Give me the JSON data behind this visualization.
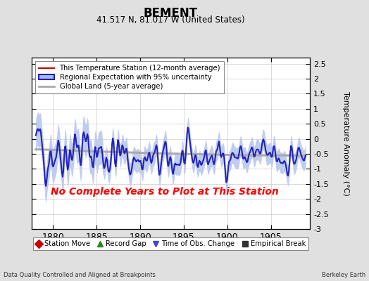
{
  "title": "BEMENT",
  "subtitle": "41.517 N, 81.017 W (United States)",
  "ylabel": "Temperature Anomaly (°C)",
  "xlabel_left": "Data Quality Controlled and Aligned at Breakpoints",
  "xlabel_right": "Berkeley Earth",
  "no_data_text": "No Complete Years to Plot at This Station",
  "xlim": [
    1877.5,
    1909.5
  ],
  "ylim": [
    -3.0,
    2.7
  ],
  "yticks": [
    -3,
    -2.5,
    -2,
    -1.5,
    -1,
    -0.5,
    0,
    0.5,
    1,
    1.5,
    2,
    2.5
  ],
  "xticks": [
    1880,
    1885,
    1890,
    1895,
    1900,
    1905
  ],
  "bg_color": "#e0e0e0",
  "plot_bg_color": "#ffffff",
  "regional_color": "#2222bb",
  "regional_fill_color": "#aabbee",
  "global_land_color": "#aaaaaa",
  "station_color": "#cc0000",
  "no_data_color": "#ff0000",
  "legend1_items": [
    {
      "label": "This Temperature Station (12-month average)",
      "color": "#cc0000",
      "lw": 1.5
    },
    {
      "label": "Regional Expectation with 95% uncertainty",
      "color": "#2222bb",
      "lw": 2.0
    },
    {
      "label": "Global Land (5-year average)",
      "color": "#aaaaaa",
      "lw": 2.0
    }
  ],
  "legend2_items": [
    {
      "label": "Station Move",
      "marker": "D",
      "color": "#cc0000"
    },
    {
      "label": "Record Gap",
      "marker": "^",
      "color": "#228822"
    },
    {
      "label": "Time of Obs. Change",
      "marker": "v",
      "color": "#4444cc"
    },
    {
      "label": "Empirical Break",
      "marker": "s",
      "color": "#333333"
    }
  ],
  "seed": 42,
  "n_months": 372,
  "start_year": 1878.0
}
